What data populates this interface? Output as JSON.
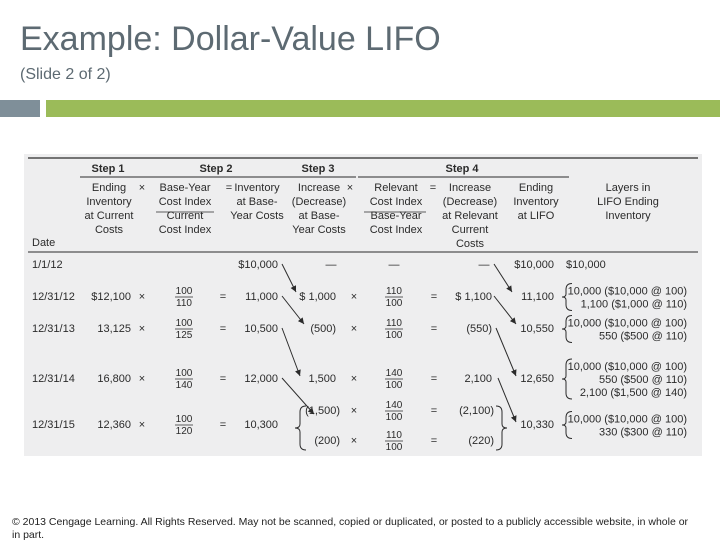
{
  "slide": {
    "title": "Example:  Dollar-Value LIFO",
    "subtitle": "(Slide 2 of 2)",
    "copyright": "© 2013 Cengage Learning. All Rights Reserved. May not be scanned, copied or duplicated, or posted to a publicly accessible website, in whole or in part."
  },
  "table": {
    "steps": [
      "Step 1",
      "Step 2",
      "Step 3",
      "Step 4"
    ],
    "headers": {
      "date": "Date",
      "ending_inventory": [
        "Ending",
        "Inventory",
        "at Current",
        "Costs"
      ],
      "base_year_index": [
        "Base-Year",
        "Cost Index",
        "Current",
        "Cost Index"
      ],
      "inventory_base": [
        "Inventory",
        "at Base-",
        "Year Costs"
      ],
      "increase_base": [
        "Increase",
        "(Decrease)",
        "at Base-",
        "Year Costs"
      ],
      "relevant_index": [
        "Relevant",
        "Cost Index",
        "Base-Year",
        "Cost Index"
      ],
      "increase_current": [
        "Increase",
        "(Decrease)",
        "at Relevant",
        "Current",
        "Costs"
      ],
      "ending_lifo": [
        "Ending",
        "Inventory",
        "at LIFO"
      ],
      "layers": [
        "Layers in",
        "LIFO Ending",
        "Inventory"
      ]
    },
    "symbols": {
      "times": "×",
      "equals": "=",
      "dash": "—"
    },
    "rows": [
      {
        "date": "1/1/12",
        "ending": "",
        "idx_num": "",
        "idx_den": "",
        "inv_base": "$10,000",
        "increase": [
          "—"
        ],
        "rel_num": [
          ""
        ],
        "rel_den": [
          ""
        ],
        "inc_current": [
          "—"
        ],
        "dash_relevant": "—",
        "ending_lifo": "$10,000",
        "layers": [
          "$10,000"
        ]
      },
      {
        "date": "12/31/12",
        "ending": "$12,100",
        "idx_num": "100",
        "idx_den": "110",
        "inv_base": "11,000",
        "increase": [
          "$ 1,000"
        ],
        "rel_num": [
          "110"
        ],
        "rel_den": [
          "100"
        ],
        "inc_current": [
          "$ 1,100"
        ],
        "ending_lifo": "11,100",
        "layers": [
          "10,000 ($10,000 @ 100)",
          "1,100 ($1,000 @ 110)"
        ]
      },
      {
        "date": "12/31/13",
        "ending": "13,125",
        "idx_num": "100",
        "idx_den": "125",
        "inv_base": "10,500",
        "increase": [
          "(500)"
        ],
        "rel_num": [
          "110"
        ],
        "rel_den": [
          "100"
        ],
        "inc_current": [
          "(550)"
        ],
        "ending_lifo": "10,550",
        "layers": [
          "10,000 ($10,000 @ 100)",
          "550 ($500 @ 110)"
        ]
      },
      {
        "date": "12/31/14",
        "ending": "16,800",
        "idx_num": "100",
        "idx_den": "140",
        "inv_base": "12,000",
        "increase": [
          "1,500"
        ],
        "rel_num": [
          "140"
        ],
        "rel_den": [
          "100"
        ],
        "inc_current": [
          "2,100"
        ],
        "ending_lifo": "12,650",
        "layers": [
          "10,000 ($10,000 @ 100)",
          "550 ($500 @ 110)",
          "2,100 ($1,500 @ 140)"
        ]
      },
      {
        "date": "12/31/15",
        "ending": "12,360",
        "idx_num": "100",
        "idx_den": "120",
        "inv_base": "10,300",
        "increase": [
          "(1,500)",
          "(200)"
        ],
        "rel_num": [
          "140",
          "110"
        ],
        "rel_den": [
          "100",
          "100"
        ],
        "inc_current": [
          "(2,100)",
          "(220)"
        ],
        "ending_lifo": "10,330",
        "layers": [
          "10,000 ($10,000 @ 100)",
          "330 ($300 @ 110)"
        ]
      }
    ]
  }
}
